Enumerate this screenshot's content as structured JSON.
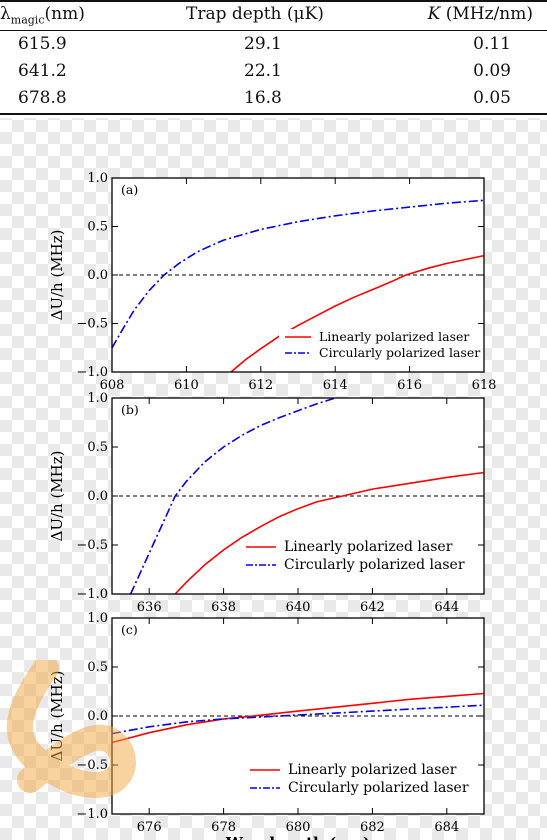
{
  "table": {
    "headers": {
      "col1_symbol": "λ",
      "col1_sub": "magic",
      "col1_unit": "(nm)",
      "col2": "Trap depth (μK)",
      "col3_symbol": "K",
      "col3_unit": " (MHz/nm)"
    },
    "rows": [
      {
        "lambda": "615.9",
        "depth": "29.1",
        "k": "0.11"
      },
      {
        "lambda": "641.2",
        "depth": "22.1",
        "k": "0.09"
      },
      {
        "lambda": "678.8",
        "depth": "16.8",
        "k": "0.05"
      }
    ]
  },
  "chart_data": [
    {
      "type": "line",
      "panel_label": "(a)",
      "ylabel": "ΔU/h (MHz)",
      "xlim": [
        608,
        618
      ],
      "ylim": [
        -1.0,
        1.0
      ],
      "xticks": [
        608,
        610,
        612,
        614,
        616,
        618
      ],
      "xtick_labels": [
        "608",
        "610",
        "612",
        "614",
        "616",
        "618"
      ],
      "yticks": [
        -1.0,
        -0.5,
        0.0,
        0.5,
        1.0
      ],
      "ytick_labels": [
        "−1.0",
        "−0.5",
        "0.0",
        "0.5",
        "1.0"
      ],
      "zero_line": true,
      "legend_position": "bottom-right",
      "series": [
        {
          "name": "Linearly polarized laser",
          "color": "#ff0000",
          "style": "solid",
          "x": [
            611.2,
            611.6,
            612.0,
            612.5,
            613.0,
            613.5,
            614.0,
            614.5,
            615.0,
            615.5,
            615.9,
            616.5,
            617.0,
            617.5,
            618.0
          ],
          "y": [
            -1.0,
            -0.87,
            -0.76,
            -0.63,
            -0.52,
            -0.42,
            -0.32,
            -0.23,
            -0.15,
            -0.07,
            0.0,
            0.07,
            0.12,
            0.16,
            0.2
          ]
        },
        {
          "name": "Circularly polarized laser",
          "color": "#0000ee",
          "style": "dashdot",
          "x": [
            608.0,
            608.3,
            608.6,
            609.0,
            609.4,
            609.8,
            610.3,
            611.0,
            612.0,
            613.0,
            614.0,
            615.0,
            616.0,
            617.0,
            618.0
          ],
          "y": [
            -0.75,
            -0.55,
            -0.36,
            -0.16,
            0.0,
            0.12,
            0.24,
            0.36,
            0.47,
            0.55,
            0.61,
            0.66,
            0.7,
            0.74,
            0.77
          ]
        }
      ]
    },
    {
      "type": "line",
      "panel_label": "(b)",
      "ylabel": "ΔU/h (MHz)",
      "xlim": [
        635,
        645
      ],
      "ylim": [
        -1.0,
        1.0
      ],
      "xticks": [
        636,
        638,
        640,
        642,
        644
      ],
      "xtick_labels": [
        "636",
        "638",
        "640",
        "642",
        "644"
      ],
      "yticks": [
        -1.0,
        -0.5,
        0.0,
        0.5,
        1.0
      ],
      "ytick_labels": [
        "−1.0",
        "−0.5",
        "0.0",
        "0.5",
        "1.0"
      ],
      "zero_line": true,
      "legend_position": "bottom-right",
      "series": [
        {
          "name": "Linearly polarized laser",
          "color": "#ff0000",
          "style": "solid",
          "x": [
            636.7,
            637.0,
            637.5,
            638.0,
            638.5,
            639.0,
            639.5,
            640.0,
            640.5,
            641.2,
            642.0,
            643.0,
            644.0,
            645.0
          ],
          "y": [
            -1.0,
            -0.88,
            -0.7,
            -0.55,
            -0.42,
            -0.31,
            -0.21,
            -0.13,
            -0.06,
            0.0,
            0.07,
            0.13,
            0.19,
            0.24
          ]
        },
        {
          "name": "Circularly polarized laser",
          "color": "#0000ee",
          "style": "dashdot",
          "x": [
            635.5,
            635.8,
            636.1,
            636.4,
            636.7,
            637.0,
            637.5,
            638.0,
            638.5,
            639.0,
            639.5,
            640.0,
            640.5,
            641.0
          ],
          "y": [
            -1.0,
            -0.75,
            -0.5,
            -0.25,
            0.0,
            0.15,
            0.35,
            0.5,
            0.62,
            0.72,
            0.8,
            0.87,
            0.94,
            1.0
          ]
        }
      ]
    },
    {
      "type": "line",
      "panel_label": "(c)",
      "ylabel": "ΔU/h (MHz)",
      "xlabel": "Wavelength (nm)",
      "xlim": [
        675,
        685
      ],
      "ylim": [
        -1.0,
        1.0
      ],
      "xticks": [
        676,
        678,
        680,
        682,
        684
      ],
      "xtick_labels": [
        "676",
        "678",
        "680",
        "682",
        "684"
      ],
      "yticks": [
        -1.0,
        -0.5,
        0.0,
        0.5,
        1.0
      ],
      "ytick_labels": [
        "−1.0",
        "−0.5",
        "0.0",
        "0.5",
        "1.0"
      ],
      "zero_line": true,
      "legend_position": "bottom-right",
      "series": [
        {
          "name": "Linearly polarized laser",
          "color": "#ff0000",
          "style": "solid",
          "x": [
            675.0,
            676.0,
            677.0,
            678.0,
            678.8,
            680.0,
            681.0,
            682.0,
            683.0,
            684.0,
            685.0
          ],
          "y": [
            -0.27,
            -0.17,
            -0.09,
            -0.03,
            0.0,
            0.05,
            0.09,
            0.13,
            0.17,
            0.2,
            0.23
          ]
        },
        {
          "name": "Circularly polarized laser",
          "color": "#0000ee",
          "style": "dashdot",
          "x": [
            675.0,
            676.0,
            677.0,
            678.0,
            679.0,
            680.0,
            681.0,
            682.0,
            683.0,
            684.0,
            685.0
          ],
          "y": [
            -0.18,
            -0.11,
            -0.06,
            -0.03,
            -0.01,
            0.01,
            0.03,
            0.05,
            0.07,
            0.09,
            0.11
          ]
        }
      ]
    }
  ]
}
